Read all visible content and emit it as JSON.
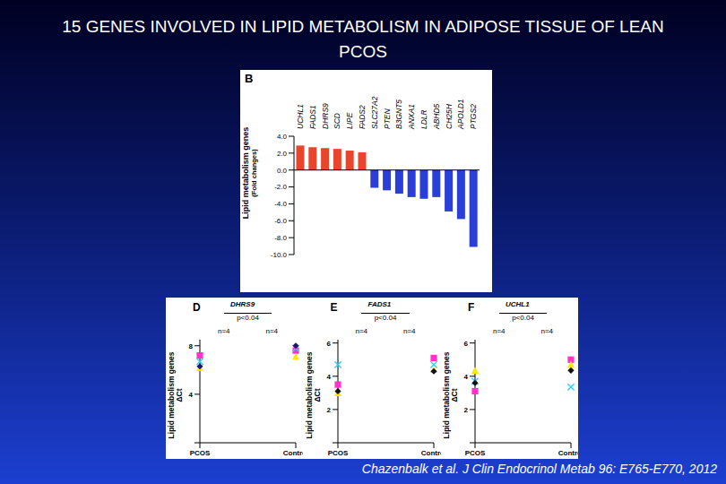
{
  "title": "15 GENES INVOLVED IN LIPID METABOLISM IN ADIPOSE TISSUE OF LEAN PCOS",
  "citation": "Chazenbalk et al. J Clin Endocrinol Metab 96: E765-E770, 2012",
  "chart_data": [
    {
      "type": "bar",
      "panel": "B",
      "y_label": "Lipid metabolism genes",
      "y_label_sub": "(Fold changes)",
      "categories": [
        "UCHL1",
        "FADS1",
        "DHRS9",
        "SCD",
        "LIPE",
        "FADS2",
        "SLC27A2",
        "PTEN",
        "B3GNT5",
        "ANXA1",
        "LDLR",
        "ABHD5",
        "CH25H",
        "APOLD1",
        "PTGS2"
      ],
      "values": [
        2.9,
        2.7,
        2.6,
        2.5,
        2.3,
        2.1,
        -2.1,
        -2.4,
        -2.8,
        -3.2,
        -3.4,
        -3.2,
        -4.9,
        -5.8,
        -9.1
      ],
      "colors": [
        "#e8452c",
        "#e8452c",
        "#e8452c",
        "#e8452c",
        "#e8452c",
        "#e8452c",
        "#2a3ed8",
        "#2a3ed8",
        "#2a3ed8",
        "#2a3ed8",
        "#2a3ed8",
        "#2a3ed8",
        "#2a3ed8",
        "#2a3ed8",
        "#2a3ed8"
      ],
      "ylim": [
        -10,
        4
      ],
      "yticks": [
        {
          "value": 4,
          "label": "4.0"
        },
        {
          "value": 2,
          "label": "2.0"
        },
        {
          "value": 0,
          "label": "0.0"
        },
        {
          "value": -2,
          "label": "-2.0"
        },
        {
          "value": -4,
          "label": "-4.0"
        },
        {
          "value": -6,
          "label": "-6.0"
        },
        {
          "value": -8,
          "label": "-8.0"
        },
        {
          "value": -10,
          "label": "-10.0"
        }
      ]
    },
    {
      "type": "scatter",
      "panel": "D",
      "title": "DHRS9",
      "annotation": "p<0.04",
      "group_labels": [
        "n=4",
        "n=4"
      ],
      "y_label": "Lipid metabolism genes",
      "y_label_sub": "ΔCt",
      "categories": [
        "PCOS",
        "Control"
      ],
      "ylim": [
        0,
        8.5
      ],
      "yticks": [
        0,
        4,
        8
      ],
      "series": [
        {
          "color": "#ff33cc",
          "marker": "square",
          "values": [
            7.2,
            7.6
          ]
        },
        {
          "color": "#ffe600",
          "marker": "triangle",
          "values": [
            6.2,
            7.1
          ]
        },
        {
          "color": "#33ccff",
          "marker": "cross",
          "values": [
            6.7,
            7.8
          ]
        },
        {
          "color": "#1a1a66",
          "marker": "diamond",
          "values": [
            6.3,
            8.0
          ]
        }
      ]
    },
    {
      "type": "scatter",
      "panel": "E",
      "title": "FADS1",
      "annotation": "p<0.04",
      "group_labels": [
        "n=4",
        "n=4"
      ],
      "y_label": "Lipid metabolism genes",
      "y_label_sub": "ΔCt",
      "categories": [
        "PCOS",
        "Control"
      ],
      "ylim": [
        0,
        6.2
      ],
      "yticks": [
        0,
        2,
        4,
        6
      ],
      "series": [
        {
          "color": "#ff33cc",
          "marker": "square",
          "values": [
            3.5,
            5.1
          ]
        },
        {
          "color": "#ffe600",
          "marker": "triangle",
          "values": [
            3.0,
            4.4
          ]
        },
        {
          "color": "#33ccff",
          "marker": "cross",
          "values": [
            4.7,
            4.7
          ]
        },
        {
          "color": "#111111",
          "marker": "diamond",
          "values": [
            3.1,
            4.3
          ]
        }
      ]
    },
    {
      "type": "scatter",
      "panel": "F",
      "title": "UCHL1",
      "annotation": "p<0.04",
      "group_labels": [
        "n=4",
        "n=4"
      ],
      "y_label": "Lipid metabolism genes",
      "y_label_sub": "ΔCt",
      "categories": [
        "PCOS",
        "Control"
      ],
      "ylim": [
        0,
        6.2
      ],
      "yticks": [
        0,
        2,
        4,
        6
      ],
      "series": [
        {
          "color": "#ff33cc",
          "marker": "square",
          "values": [
            3.1,
            5.0
          ]
        },
        {
          "color": "#ffe600",
          "marker": "triangle",
          "values": [
            4.35,
            4.7
          ]
        },
        {
          "color": "#33ccff",
          "marker": "cross",
          "values": [
            3.7,
            3.35
          ]
        },
        {
          "color": "#111111",
          "marker": "diamond",
          "values": [
            3.6,
            4.35
          ]
        }
      ]
    }
  ]
}
